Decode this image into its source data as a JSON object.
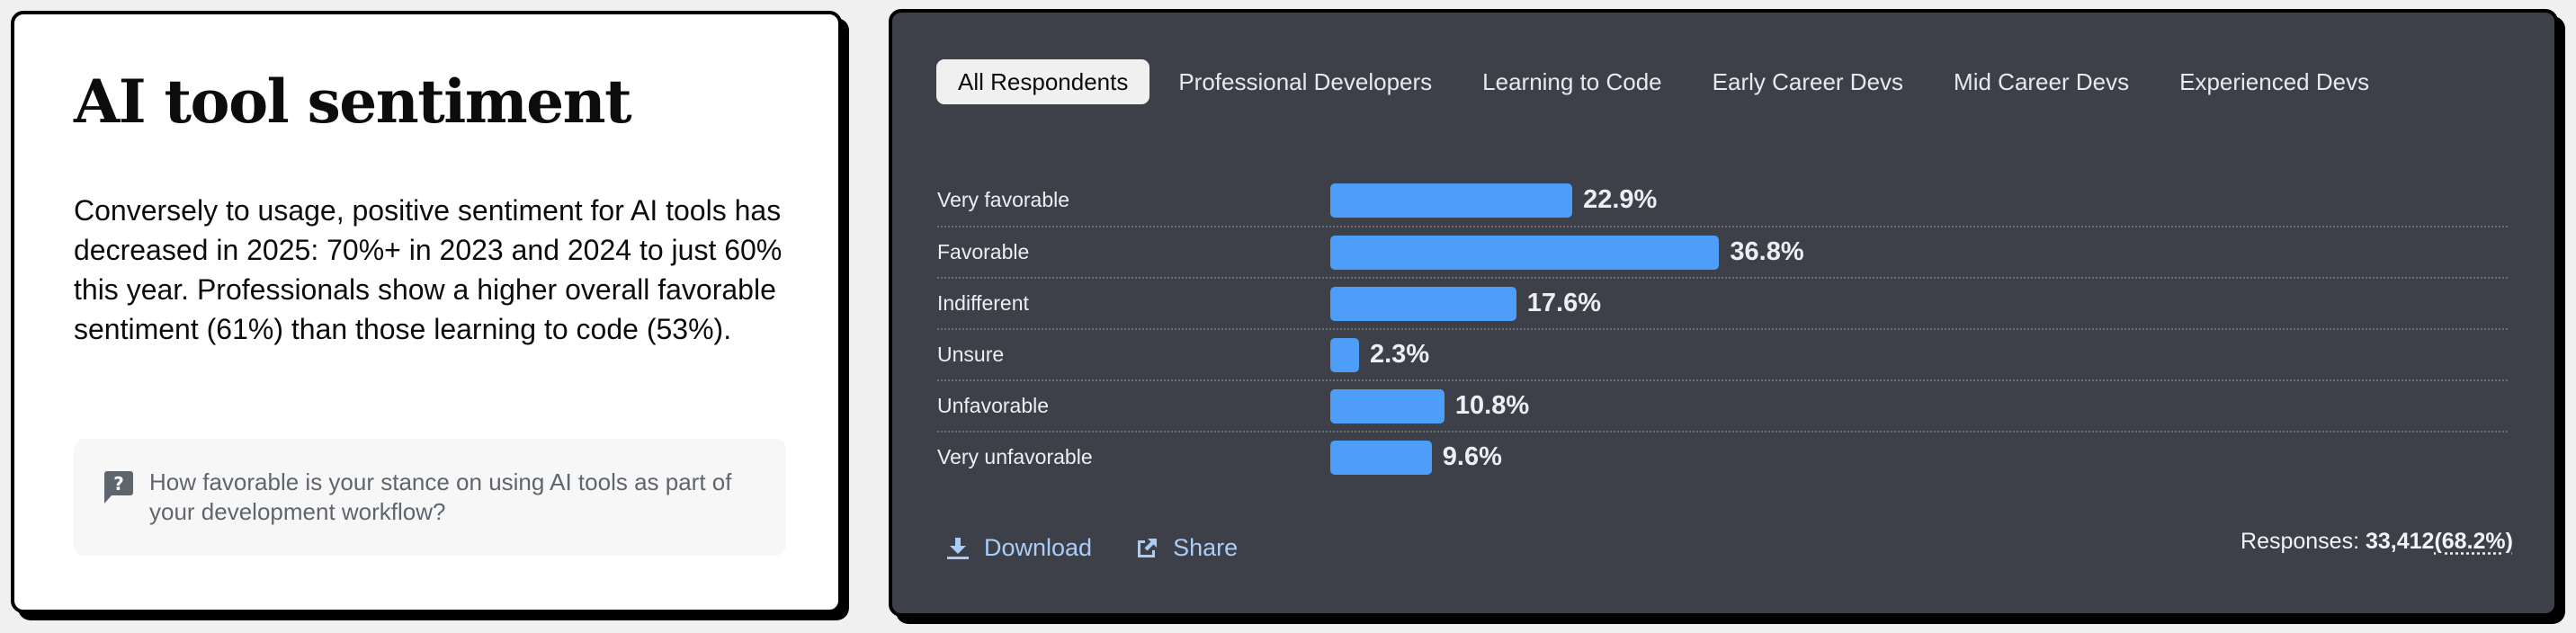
{
  "info": {
    "title": "AI tool sentiment",
    "body": "Conversely to usage, positive sentiment for AI tools has decreased in 2025: 70%+ in 2023 and 2024 to just 60% this year. Professionals show a higher overall favorable sentiment (61%) than those learning to code (53%).",
    "question_icon": "question-speech-bubble-icon",
    "question": "How favorable is your stance on using AI tools as part of your development workflow?"
  },
  "tabs": [
    {
      "label": "All Respondents",
      "active": true
    },
    {
      "label": "Professional Developers",
      "active": false
    },
    {
      "label": "Learning to Code",
      "active": false
    },
    {
      "label": "Early Career Devs",
      "active": false
    },
    {
      "label": "Mid Career Devs",
      "active": false
    },
    {
      "label": "Experienced Devs",
      "active": false
    }
  ],
  "rows": [
    {
      "label": "Very favorable",
      "value": 22.9,
      "display": "22.9%"
    },
    {
      "label": "Favorable",
      "value": 36.8,
      "display": "36.8%"
    },
    {
      "label": "Indifferent",
      "value": 17.6,
      "display": "17.6%"
    },
    {
      "label": "Unsure",
      "value": 2.3,
      "display": "2.3%"
    },
    {
      "label": "Unfavorable",
      "value": 10.8,
      "display": "10.8%"
    },
    {
      "label": "Very unfavorable",
      "value": 9.6,
      "display": "9.6%"
    }
  ],
  "footer": {
    "download_label": "Download",
    "download_icon": "download-icon",
    "share_label": "Share",
    "share_icon": "external-share-icon",
    "responses_label": "Responses: ",
    "responses_count": "33,412",
    "responses_pct": "(68.2%)"
  },
  "colors": {
    "bar": "#4c9ef8",
    "panel_dark": "#3d4048",
    "link": "#a9cdf6",
    "active_tab_bg": "#f0f0f0"
  },
  "chart_data": {
    "type": "bar",
    "orientation": "horizontal",
    "title": "AI tool sentiment",
    "subtitle": "How favorable is your stance on using AI tools as part of your development workflow?",
    "filter": "All Respondents",
    "categories": [
      "Very favorable",
      "Favorable",
      "Indifferent",
      "Unsure",
      "Unfavorable",
      "Very unfavorable"
    ],
    "values": [
      22.9,
      36.8,
      17.6,
      2.3,
      10.8,
      9.6
    ],
    "unit": "%",
    "xlabel": "",
    "ylabel": "",
    "grid": "dotted row separators",
    "legend": "none",
    "responses": 33412,
    "response_rate_pct": 68.2
  }
}
